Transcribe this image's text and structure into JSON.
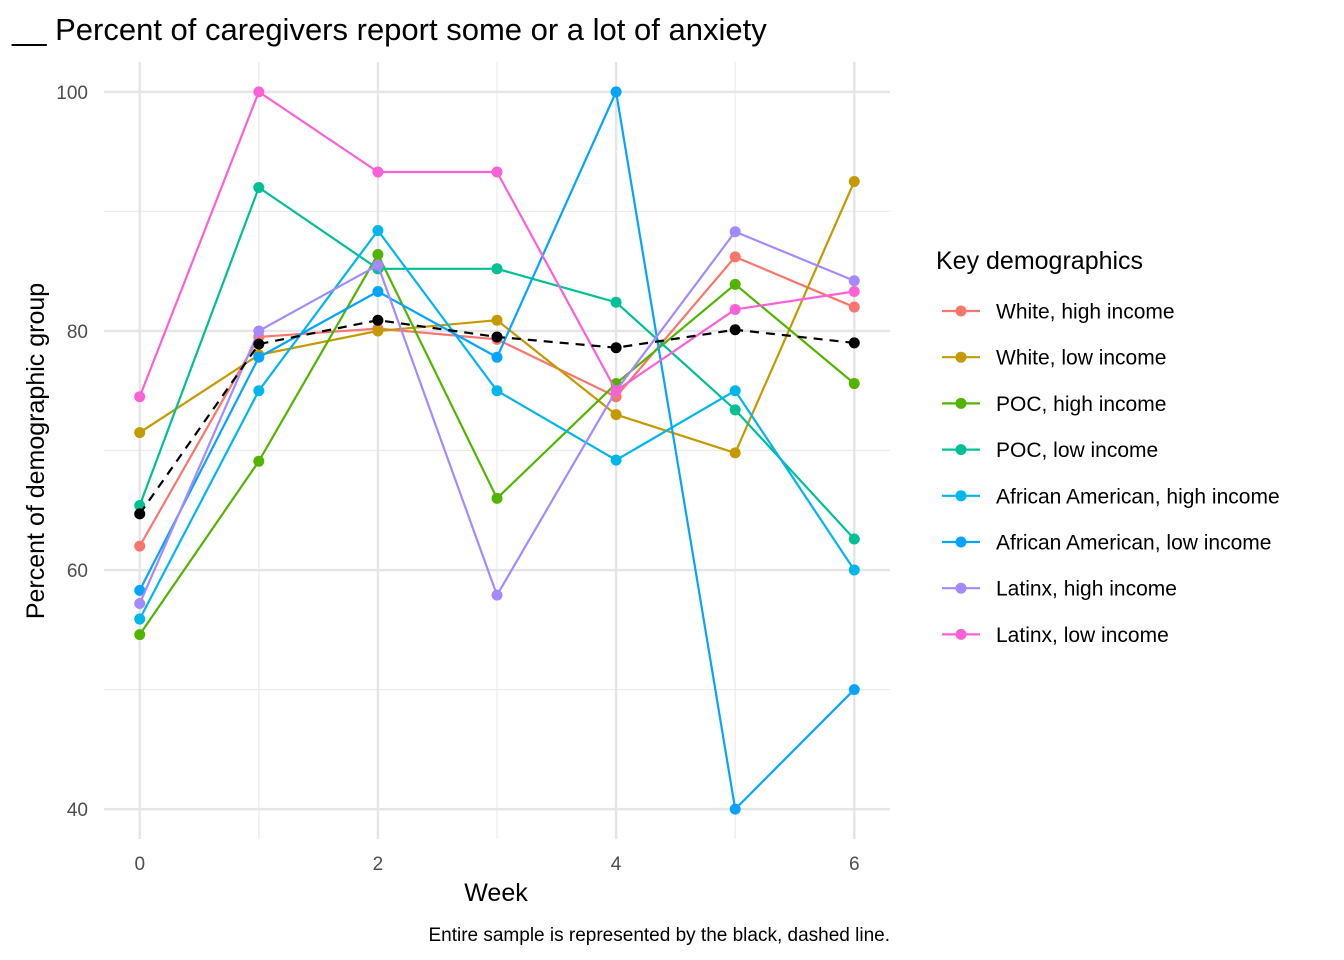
{
  "chart_data": {
    "type": "line",
    "title": "__ Percent of caregivers report some or a lot of anxiety",
    "xlabel": "Week",
    "ylabel": "Percent of demographic group",
    "caption": "Entire sample is represented by the black, dashed line.",
    "x": [
      0,
      1,
      2,
      3,
      4,
      5,
      6
    ],
    "xticks": [
      "0",
      "2",
      "4",
      "6"
    ],
    "yticks": [
      "40",
      "60",
      "80",
      "100"
    ],
    "xlim": [
      -0.3,
      6.3
    ],
    "ylim": [
      37.5,
      102.5
    ],
    "grid": true,
    "legend_title": "Key demographics",
    "legend_position": "right",
    "series": [
      {
        "name": "White, high income",
        "color": "#F8766D",
        "values": [
          62,
          79.5,
          80.2,
          79.3,
          74.5,
          86.2,
          82
        ]
      },
      {
        "name": "White, low income",
        "color": "#C49A00",
        "values": [
          71.5,
          78,
          80,
          80.9,
          73,
          69.8,
          92.5
        ]
      },
      {
        "name": "POC, high income",
        "color": "#53B400",
        "values": [
          54.6,
          69.1,
          86.4,
          66,
          75.6,
          83.9,
          75.6
        ]
      },
      {
        "name": "POC, low income",
        "color": "#00C094",
        "values": [
          65.4,
          92,
          85.2,
          85.2,
          82.4,
          73.4,
          62.6
        ]
      },
      {
        "name": "African American, high income",
        "color": "#00B6EB",
        "values": [
          55.9,
          75,
          88.4,
          75,
          69.2,
          75,
          60
        ]
      },
      {
        "name": "African American, low income",
        "color": "#06A4FF",
        "values": [
          58.3,
          77.8,
          83.3,
          77.8,
          100,
          40,
          50
        ]
      },
      {
        "name": "Latinx, high income",
        "color": "#A58AFF",
        "values": [
          57.2,
          80,
          85.5,
          57.9,
          75,
          88.3,
          84.2
        ]
      },
      {
        "name": "Latinx, low income",
        "color": "#FB61D7",
        "values": [
          74.5,
          100,
          93.3,
          93.3,
          75,
          81.8,
          83.3
        ]
      }
    ],
    "overall": {
      "color": "#000000",
      "dashed": true,
      "values": [
        64.7,
        78.9,
        80.9,
        79.5,
        78.6,
        80.1,
        79
      ]
    }
  }
}
